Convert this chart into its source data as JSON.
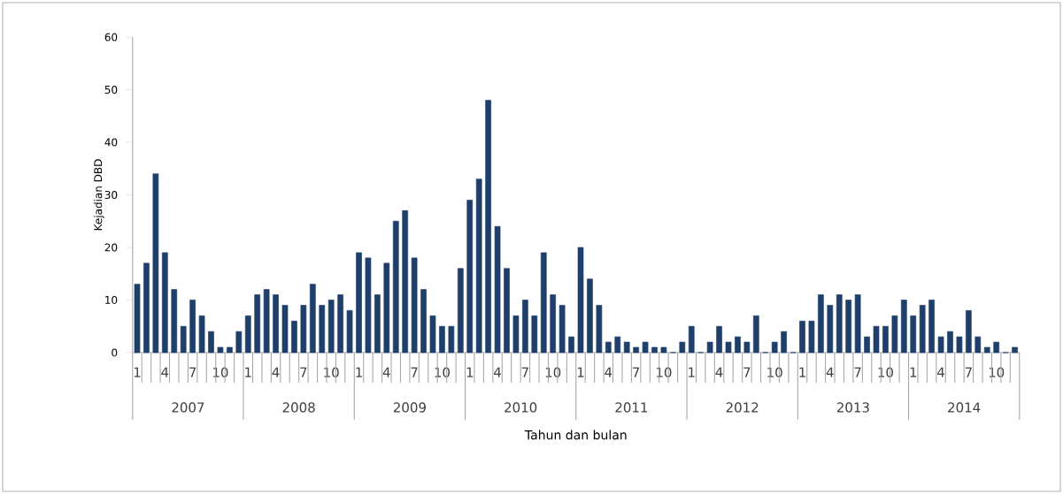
{
  "chart_data": {
    "type": "bar",
    "xlabel": "Tahun dan bulan",
    "ylabel": "Kejadian DBD",
    "categories": [
      "1",
      null,
      null,
      "4",
      null,
      null,
      "7",
      null,
      null,
      "10",
      null,
      null,
      "1",
      null,
      null,
      "4",
      null,
      null,
      "7",
      null,
      null,
      "10",
      null,
      null,
      "1",
      null,
      null,
      "4",
      null,
      null,
      "7",
      null,
      null,
      "10",
      null,
      null,
      "1",
      null,
      null,
      "4",
      null,
      null,
      "7",
      null,
      null,
      "10",
      null,
      null,
      "1",
      null,
      null,
      "4",
      null,
      null,
      "7",
      null,
      null,
      "10",
      null,
      null,
      "1",
      null,
      null,
      "4",
      null,
      null,
      "7",
      null,
      null,
      "10",
      null,
      null,
      "1",
      null,
      null,
      "4",
      null,
      null,
      "7",
      null,
      null,
      "10",
      null,
      null,
      "1",
      null,
      null,
      "4",
      null,
      null,
      "7",
      null,
      null,
      "10",
      null,
      null
    ],
    "values": [
      13,
      17,
      34,
      19,
      12,
      5,
      10,
      7,
      4,
      1,
      1,
      4,
      7,
      11,
      12,
      11,
      9,
      6,
      9,
      13,
      9,
      10,
      11,
      8,
      19,
      18,
      11,
      17,
      25,
      27,
      18,
      12,
      7,
      5,
      5,
      16,
      29,
      33,
      48,
      24,
      16,
      7,
      10,
      7,
      19,
      11,
      9,
      3,
      20,
      14,
      9,
      2,
      3,
      2,
      1,
      2,
      1,
      1,
      0,
      2,
      5,
      0,
      2,
      5,
      2,
      3,
      2,
      7,
      0,
      2,
      4,
      0,
      6,
      6,
      11,
      9,
      11,
      10,
      11,
      3,
      5,
      5,
      7,
      10,
      7,
      9,
      10,
      3,
      4,
      3,
      8,
      3,
      1,
      2,
      0,
      1
    ],
    "color": "#1f3f6b",
    "ylim": [
      0,
      60
    ],
    "yticks": [
      0,
      10,
      20,
      30,
      40,
      50,
      60
    ],
    "annotations": [
      "2007",
      "2008",
      "2009",
      "2010",
      "2011",
      "2012",
      "2013",
      "2014"
    ]
  }
}
